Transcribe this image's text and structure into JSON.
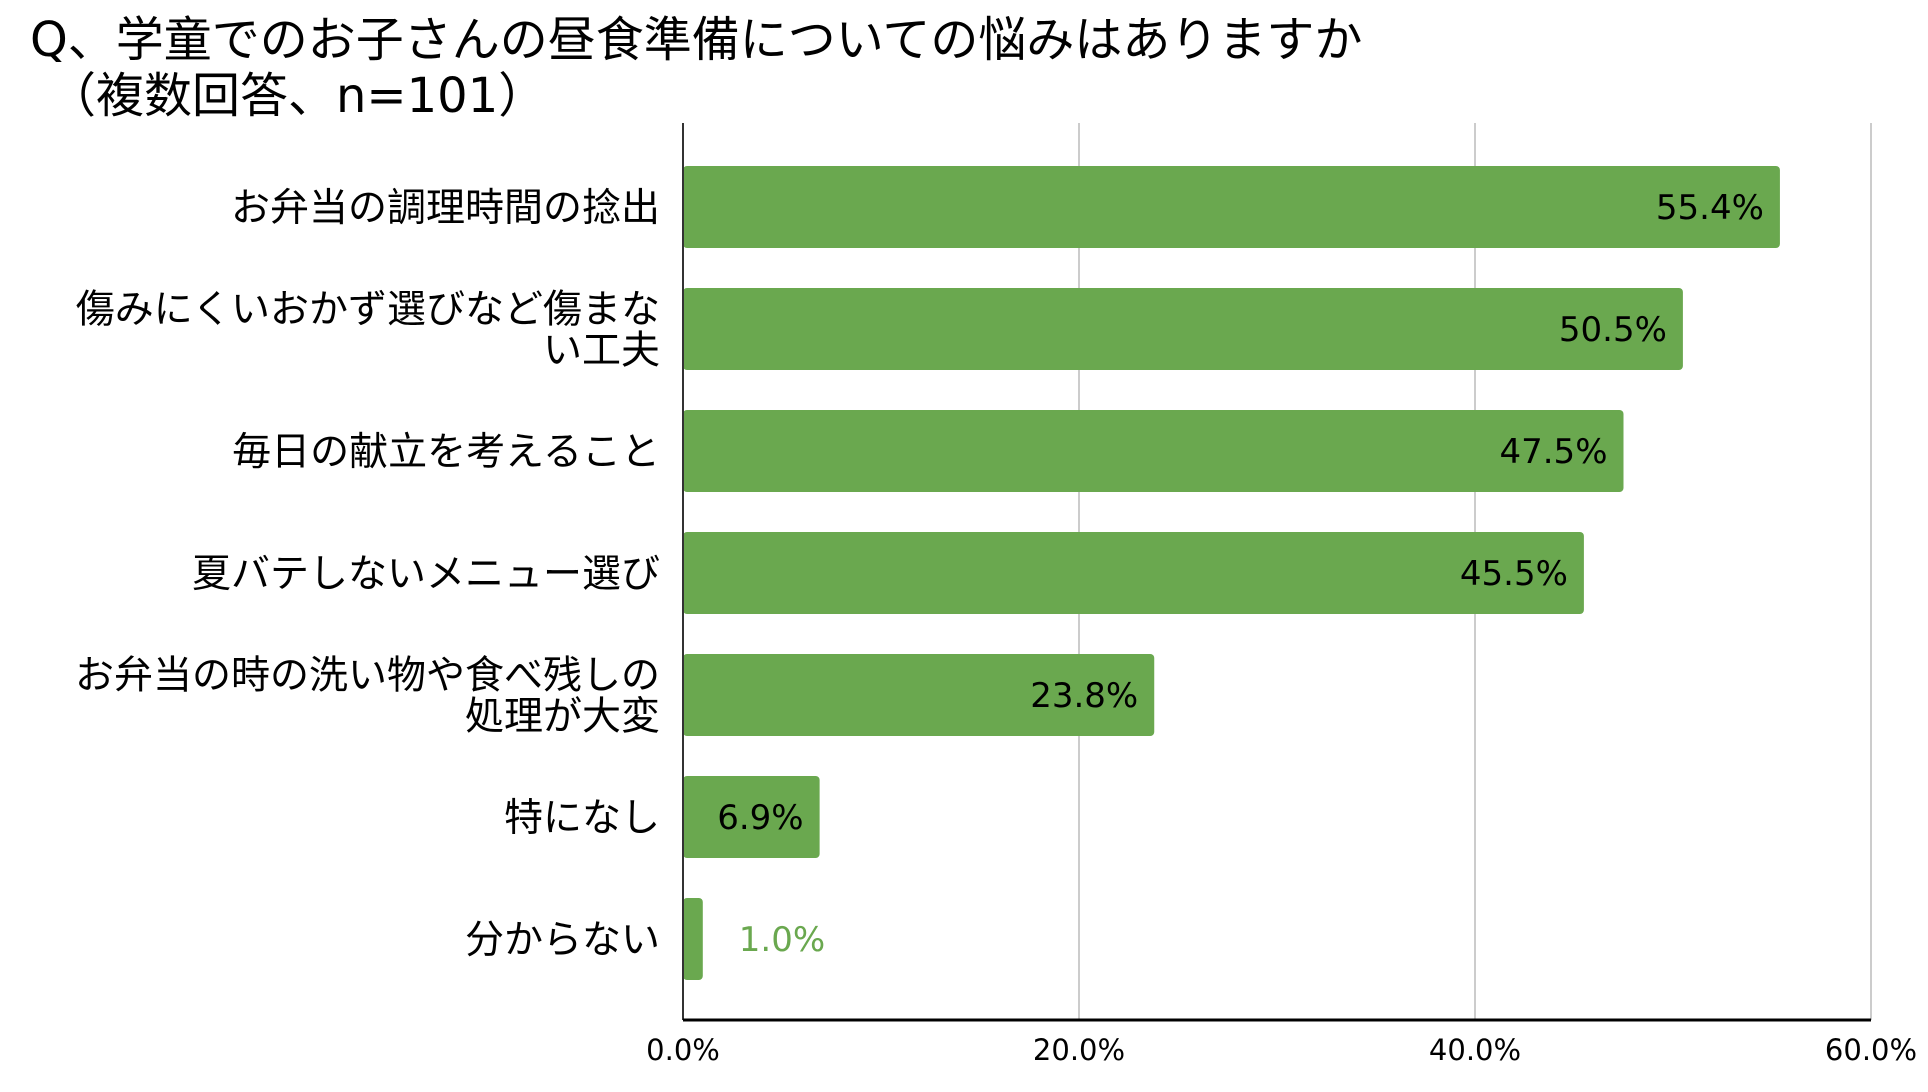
{
  "chart_data": {
    "type": "bar",
    "orientation": "horizontal",
    "title_lines": [
      "Q、学童でのお子さんの昼食準備についての悩みはありますか",
      "（複数回答、n=101）"
    ],
    "categories": [
      [
        "お弁当の調理時間の捻出"
      ],
      [
        "傷みにくいおかず選びなど傷まな",
        "い工夫"
      ],
      [
        "毎日の献立を考えること"
      ],
      [
        "夏バテしないメニュー選び"
      ],
      [
        "お弁当の時の洗い物や食べ残しの",
        "処理が大変"
      ],
      [
        "特になし"
      ],
      [
        "分からない"
      ]
    ],
    "values": [
      55.4,
      50.5,
      47.5,
      45.5,
      23.8,
      6.9,
      1.0
    ],
    "value_labels": [
      "55.4%",
      "50.5%",
      "47.5%",
      "45.5%",
      "23.8%",
      "6.9%",
      "1.0%"
    ],
    "xlim": [
      0,
      60
    ],
    "xticks": [
      0,
      20,
      40,
      60
    ],
    "xtick_labels": [
      "0.0%",
      "20.0%",
      "40.0%",
      "60.0%"
    ],
    "grid": "vertical",
    "legend": "none",
    "bar_color": "#6aa84f"
  }
}
